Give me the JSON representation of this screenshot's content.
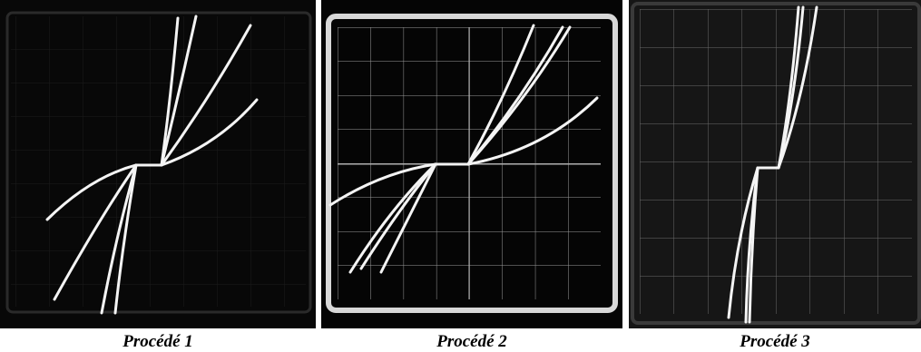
{
  "panels": [
    {
      "caption": "Procédé 1"
    },
    {
      "caption": "Procédé 2"
    },
    {
      "caption": "Procédé 3"
    }
  ]
}
